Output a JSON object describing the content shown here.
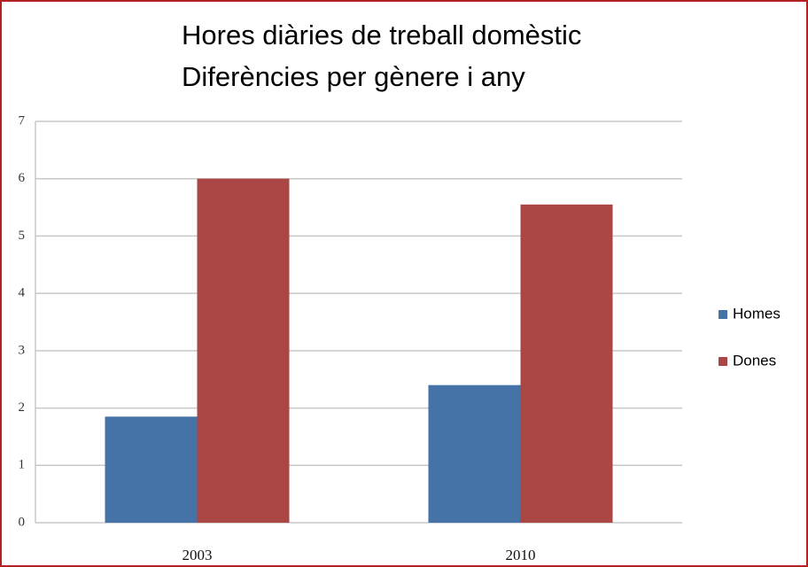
{
  "chart_data": {
    "type": "bar",
    "title": "Hores diàries de treball domèstic",
    "subtitle": "Diferències per gènere i any",
    "categories": [
      "2003",
      "2010"
    ],
    "series": [
      {
        "name": "Homes",
        "color": "#4572a7",
        "values": [
          1.85,
          2.4
        ]
      },
      {
        "name": "Dones",
        "color": "#aa4643",
        "values": [
          6.0,
          5.55
        ]
      }
    ],
    "ylim": [
      0,
      7
    ],
    "yticks": [
      0,
      1,
      2,
      3,
      4,
      5,
      6,
      7
    ],
    "grid": true,
    "legend": "right"
  }
}
